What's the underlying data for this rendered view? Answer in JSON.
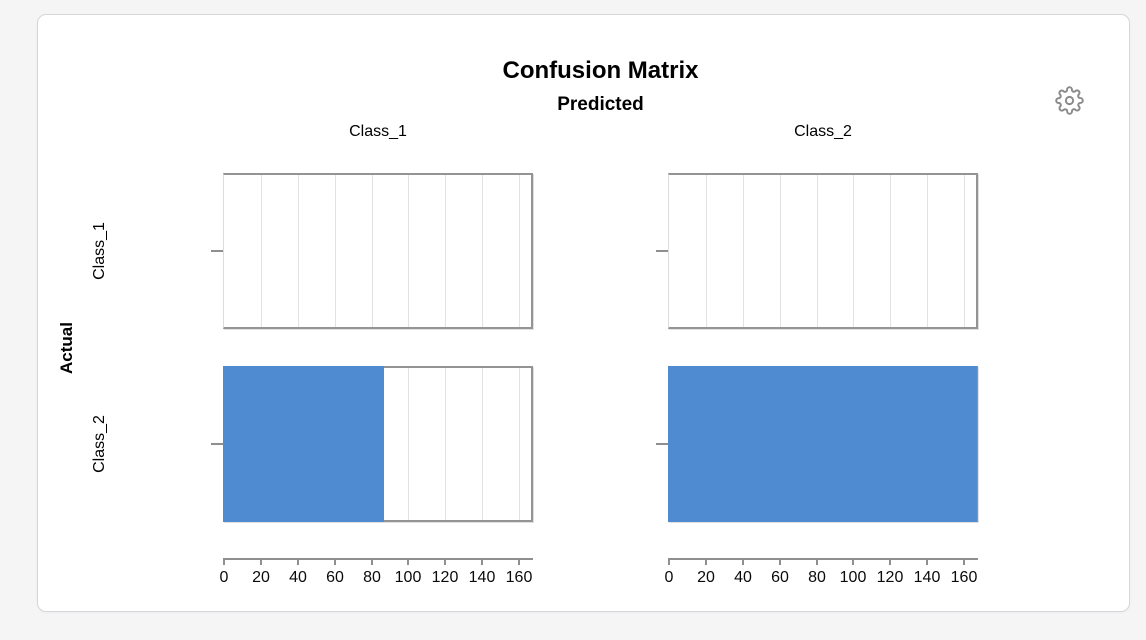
{
  "header": {
    "title": "Confusion Matrix",
    "subtitle": "Predicted"
  },
  "toolbar": {
    "settings_icon": "gear-icon"
  },
  "chart_data": {
    "type": "bar",
    "orientation": "horizontal",
    "title": "Confusion Matrix",
    "facet_columns_title": "Predicted",
    "ylabel": "Actual",
    "xlabel": "",
    "columns": [
      "Class_1",
      "Class_2"
    ],
    "rows": [
      "Class_1",
      "Class_2"
    ],
    "series": [
      {
        "actual": "Class_1",
        "values": [
          0,
          0
        ]
      },
      {
        "actual": "Class_2",
        "values": [
          87,
          167
        ]
      }
    ],
    "x_ticks": [
      0,
      20,
      40,
      60,
      80,
      100,
      120,
      140,
      160
    ],
    "x_max": 167,
    "grid": true,
    "legend": "none",
    "bar_color": "#4E8BD0",
    "axis_color": "#8f8f8f",
    "gridline_color": "#e2e2e2",
    "panel_border_color": "#949494"
  }
}
